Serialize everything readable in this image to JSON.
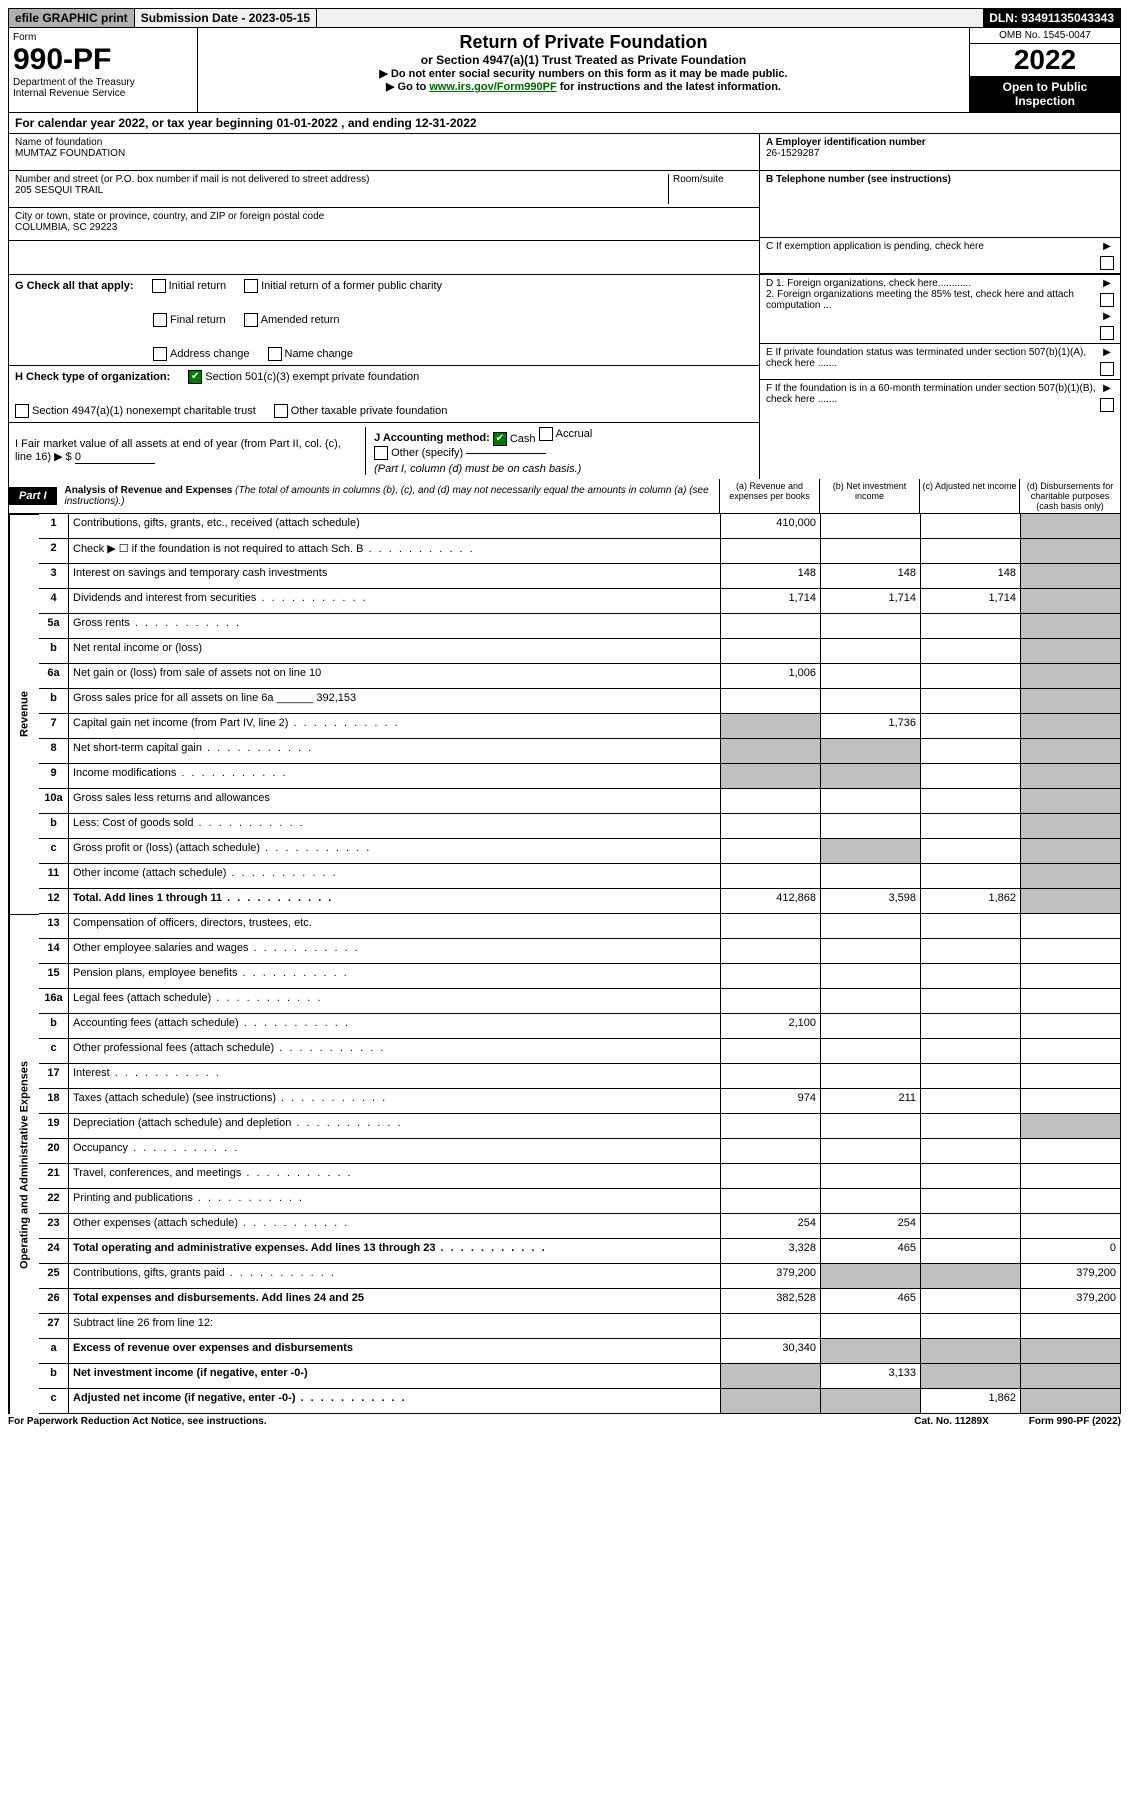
{
  "topbar": {
    "efile": "efile GRAPHIC print",
    "subdate_label": "Submission Date - 2023-05-15",
    "dln": "DLN: 93491135043343"
  },
  "header": {
    "form_word": "Form",
    "form_no": "990-PF",
    "dept": "Department of the Treasury",
    "irs": "Internal Revenue Service",
    "title": "Return of Private Foundation",
    "subtitle": "or Section 4947(a)(1) Trust Treated as Private Foundation",
    "instr1": "▶ Do not enter social security numbers on this form as it may be made public.",
    "instr2_pre": "▶ Go to ",
    "instr2_link": "www.irs.gov/Form990PF",
    "instr2_post": " for instructions and the latest information.",
    "omb": "OMB No. 1545-0047",
    "year": "2022",
    "open": "Open to Public Inspection"
  },
  "calendar": "For calendar year 2022, or tax year beginning 01-01-2022                          , and ending 12-31-2022",
  "info": {
    "name_label": "Name of foundation",
    "name": "MUMTAZ FOUNDATION",
    "addr_label": "Number and street (or P.O. box number if mail is not delivered to street address)",
    "room_label": "Room/suite",
    "addr": "205 SESQUI TRAIL",
    "city_label": "City or town, state or province, country, and ZIP or foreign postal code",
    "city": "COLUMBIA, SC  29223",
    "a_label": "A Employer identification number",
    "a_val": "26-1529287",
    "b_label": "B Telephone number (see instructions)",
    "c_label": "C If exemption application is pending, check here",
    "d1": "D 1. Foreign organizations, check here............",
    "d2": "2. Foreign organizations meeting the 85% test, check here and attach computation ...",
    "e": "E  If private foundation status was terminated under section 507(b)(1)(A), check here .......",
    "f": "F  If the foundation is in a 60-month termination under section 507(b)(1)(B), check here .......",
    "g_label": "G Check all that apply:",
    "g_opts": [
      "Initial return",
      "Final return",
      "Address change",
      "Initial return of a former public charity",
      "Amended return",
      "Name change"
    ],
    "h_label": "H Check type of organization:",
    "h1": "Section 501(c)(3) exempt private foundation",
    "h2": "Section 4947(a)(1) nonexempt charitable trust",
    "h3": "Other taxable private foundation",
    "i_label": "I Fair market value of all assets at end of year (from Part II, col. (c), line 16) ▶ $",
    "i_val": "0",
    "j_label": "J Accounting method:",
    "j1": "Cash",
    "j2": "Accrual",
    "j3": "Other (specify)",
    "j_note": "(Part I, column (d) must be on cash basis.)"
  },
  "part1": {
    "label": "Part I",
    "title": "Analysis of Revenue and Expenses",
    "note": "(The total of amounts in columns (b), (c), and (d) may not necessarily equal the amounts in column (a) (see instructions).)",
    "col_a": "(a) Revenue and expenses per books",
    "col_b": "(b) Net investment income",
    "col_c": "(c) Adjusted net income",
    "col_d": "(d) Disbursements for charitable purposes (cash basis only)",
    "vlabels": {
      "rev": "Revenue",
      "exp": "Operating and Administrative Expenses"
    }
  },
  "lines": [
    {
      "no": "1",
      "desc": "Contributions, gifts, grants, etc., received (attach schedule)",
      "a": "410,000",
      "b": "",
      "c": "",
      "d": ""
    },
    {
      "no": "2",
      "desc": "Check ▶ ☐ if the foundation is not required to attach Sch. B",
      "a": "  ",
      "b": "  ",
      "c": "  ",
      "d": "  ",
      "dots": true
    },
    {
      "no": "3",
      "desc": "Interest on savings and temporary cash investments",
      "a": "148",
      "b": "148",
      "c": "148",
      "d": ""
    },
    {
      "no": "4",
      "desc": "Dividends and interest from securities",
      "a": "1,714",
      "b": "1,714",
      "c": "1,714",
      "d": "",
      "dots": true
    },
    {
      "no": "5a",
      "desc": "Gross rents",
      "a": "",
      "b": "",
      "c": "",
      "d": "",
      "dots": true
    },
    {
      "no": "b",
      "desc": "Net rental income or (loss)",
      "a": "  ",
      "b": "  ",
      "c": "  ",
      "d": "  ",
      "inline": true
    },
    {
      "no": "6a",
      "desc": "Net gain or (loss) from sale of assets not on line 10",
      "a": "1,006",
      "b": "",
      "c": "",
      "d": ""
    },
    {
      "no": "b",
      "desc": "Gross sales price for all assets on line 6a ______ 392,153",
      "a": "  ",
      "b": "  ",
      "c": "  ",
      "d": "  "
    },
    {
      "no": "7",
      "desc": "Capital gain net income (from Part IV, line 2)",
      "a": "",
      "b": "1,736",
      "c": "",
      "d": "",
      "dots": true,
      "ashade": true
    },
    {
      "no": "8",
      "desc": "Net short-term capital gain",
      "a": "",
      "b": "",
      "c": "",
      "d": "",
      "dots": true,
      "ashade": true,
      "bshade": true
    },
    {
      "no": "9",
      "desc": "Income modifications",
      "a": "",
      "b": "",
      "c": "",
      "d": "",
      "dots": true,
      "ashade": true,
      "bshade": true
    },
    {
      "no": "10a",
      "desc": "Gross sales less returns and allowances",
      "inline": true,
      "a": "  ",
      "b": "  ",
      "c": "  ",
      "d": "  "
    },
    {
      "no": "b",
      "desc": "Less: Cost of goods sold",
      "inline": true,
      "a": "  ",
      "b": "  ",
      "c": "  ",
      "d": "  ",
      "dots": true
    },
    {
      "no": "c",
      "desc": "Gross profit or (loss) (attach schedule)",
      "a": "",
      "b": "",
      "c": "",
      "d": "",
      "dots": true,
      "bshade": true
    },
    {
      "no": "11",
      "desc": "Other income (attach schedule)",
      "a": "",
      "b": "",
      "c": "",
      "d": "",
      "dots": true
    },
    {
      "no": "12",
      "desc": "Total. Add lines 1 through 11",
      "a": "412,868",
      "b": "3,598",
      "c": "1,862",
      "d": "",
      "bold": true,
      "dots": true
    },
    {
      "no": "13",
      "desc": "Compensation of officers, directors, trustees, etc.",
      "a": "",
      "b": "",
      "c": "",
      "d": ""
    },
    {
      "no": "14",
      "desc": "Other employee salaries and wages",
      "a": "",
      "b": "",
      "c": "",
      "d": "",
      "dots": true
    },
    {
      "no": "15",
      "desc": "Pension plans, employee benefits",
      "a": "",
      "b": "",
      "c": "",
      "d": "",
      "dots": true
    },
    {
      "no": "16a",
      "desc": "Legal fees (attach schedule)",
      "a": "",
      "b": "",
      "c": "",
      "d": "",
      "dots": true
    },
    {
      "no": "b",
      "desc": "Accounting fees (attach schedule)",
      "a": "2,100",
      "b": "",
      "c": "",
      "d": "",
      "dots": true
    },
    {
      "no": "c",
      "desc": "Other professional fees (attach schedule)",
      "a": "",
      "b": "",
      "c": "",
      "d": "",
      "dots": true
    },
    {
      "no": "17",
      "desc": "Interest",
      "a": "",
      "b": "",
      "c": "",
      "d": "",
      "dots": true
    },
    {
      "no": "18",
      "desc": "Taxes (attach schedule) (see instructions)",
      "a": "974",
      "b": "211",
      "c": "",
      "d": "",
      "dots": true
    },
    {
      "no": "19",
      "desc": "Depreciation (attach schedule) and depletion",
      "a": "",
      "b": "",
      "c": "",
      "d": "",
      "dots": true,
      "dshade": true
    },
    {
      "no": "20",
      "desc": "Occupancy",
      "a": "",
      "b": "",
      "c": "",
      "d": "",
      "dots": true
    },
    {
      "no": "21",
      "desc": "Travel, conferences, and meetings",
      "a": "",
      "b": "",
      "c": "",
      "d": "",
      "dots": true
    },
    {
      "no": "22",
      "desc": "Printing and publications",
      "a": "",
      "b": "",
      "c": "",
      "d": "",
      "dots": true
    },
    {
      "no": "23",
      "desc": "Other expenses (attach schedule)",
      "a": "254",
      "b": "254",
      "c": "",
      "d": "",
      "dots": true
    },
    {
      "no": "24",
      "desc": "Total operating and administrative expenses. Add lines 13 through 23",
      "a": "3,328",
      "b": "465",
      "c": "",
      "d": "0",
      "bold": true,
      "dots": true
    },
    {
      "no": "25",
      "desc": "Contributions, gifts, grants paid",
      "a": "379,200",
      "b": "",
      "c": "",
      "d": "379,200",
      "dots": true,
      "bshade": true,
      "cshade": true
    },
    {
      "no": "26",
      "desc": "Total expenses and disbursements. Add lines 24 and 25",
      "a": "382,528",
      "b": "465",
      "c": "",
      "d": "379,200",
      "bold": true
    },
    {
      "no": "27",
      "desc": "Subtract line 26 from line 12:",
      "a": "  ",
      "b": "  ",
      "c": "  ",
      "d": "  "
    },
    {
      "no": "a",
      "desc": "Excess of revenue over expenses and disbursements",
      "a": "30,340",
      "b": "",
      "c": "",
      "d": "",
      "bold": true,
      "bshade": true,
      "cshade": true,
      "dshade": true
    },
    {
      "no": "b",
      "desc": "Net investment income (if negative, enter -0-)",
      "a": "",
      "b": "3,133",
      "c": "",
      "d": "",
      "bold": true,
      "ashade": true,
      "cshade": true,
      "dshade": true
    },
    {
      "no": "c",
      "desc": "Adjusted net income (if negative, enter -0-)",
      "a": "",
      "b": "",
      "c": "1,862",
      "d": "",
      "bold": true,
      "dots": true,
      "ashade": true,
      "bshade": true,
      "dshade": true
    }
  ],
  "footer": {
    "left": "For Paperwork Reduction Act Notice, see instructions.",
    "mid": "Cat. No. 11289X",
    "right": "Form 990-PF (2022)"
  }
}
